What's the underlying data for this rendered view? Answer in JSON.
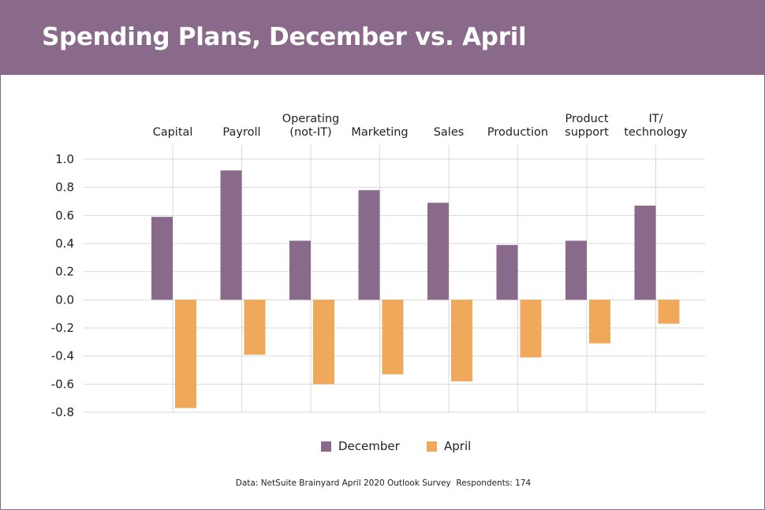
{
  "header": {
    "title": "Spending Plans, December vs. April"
  },
  "chart_data": {
    "type": "bar",
    "categories": [
      [
        "Capital"
      ],
      [
        "Payroll"
      ],
      [
        "Operating",
        "(not-IT)"
      ],
      [
        "Marketing"
      ],
      [
        "Sales"
      ],
      [
        "Production"
      ],
      [
        "Product",
        "support"
      ],
      [
        "IT/",
        "technology"
      ]
    ],
    "series": [
      {
        "name": "December",
        "color": "#8a6a8a",
        "values": [
          0.59,
          0.92,
          0.42,
          0.78,
          0.69,
          0.39,
          0.42,
          0.67
        ]
      },
      {
        "name": "April",
        "color": "#f0a95a",
        "values": [
          -0.77,
          -0.39,
          -0.6,
          -0.53,
          -0.58,
          -0.41,
          -0.31,
          -0.17
        ]
      }
    ],
    "ylim": [
      -0.8,
      1.0
    ],
    "yticks": [
      "1.0",
      "0.8",
      "0.6",
      "0.4",
      "0.2",
      "0.0",
      "-0.2",
      "-0.4",
      "-0.6",
      "-0.8"
    ],
    "ytick_values": [
      1.0,
      0.8,
      0.6,
      0.4,
      0.2,
      0.0,
      -0.2,
      -0.4,
      -0.6,
      -0.8
    ],
    "grid": true,
    "legend_position": "bottom",
    "xlabel": "",
    "ylabel": ""
  },
  "legend": {
    "december": "December",
    "april": "April"
  },
  "source_note": "Data: NetSuite Brainyard April 2020 Outlook Survey  Respondents: 174"
}
